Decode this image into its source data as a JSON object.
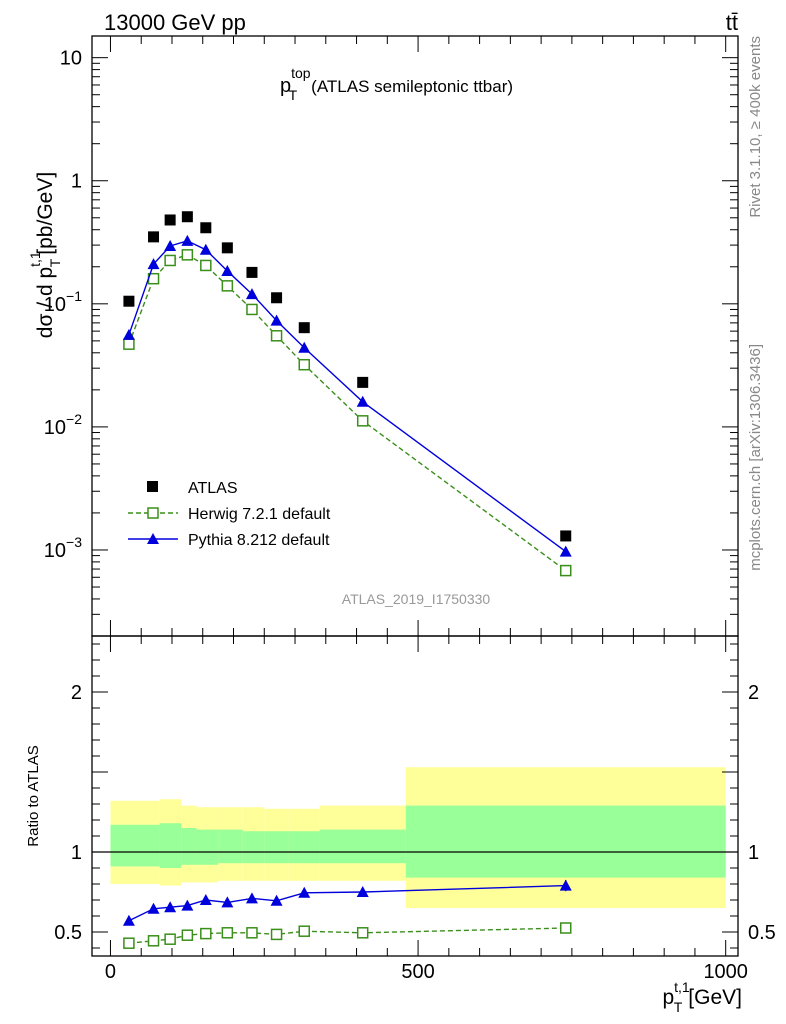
{
  "header": {
    "energy_label": "13000 GeV pp",
    "process_label": "tt̄"
  },
  "side_text": {
    "rivet": "Rivet 3.1.10, ≥ 400k events",
    "mcplots": "mcplots.cern.ch [arXiv:1306.3436]"
  },
  "chart_data": [
    {
      "type": "scatter",
      "panel": "main",
      "title_main": "p",
      "title_sup": "top",
      "title_sub": "T",
      "title_rest": "(ATLAS semileptonic ttbar)",
      "analysis_id": "ATLAS_2019_I1750330",
      "ylabel_pre": "dσ / d p",
      "ylabel_sup": "t,1",
      "ylabel_sub": "T",
      "ylabel_post": "[pb/GeV]",
      "yscale": "log",
      "ylim": [
        0.0002,
        15
      ],
      "xlim": [
        -30,
        1020
      ],
      "y_ticks": [
        {
          "value": 10,
          "mantissa": "10",
          "exp": ""
        },
        {
          "value": 1,
          "mantissa": "1",
          "exp": ""
        },
        {
          "value": 0.1,
          "mantissa": "10",
          "exp": "−1"
        },
        {
          "value": 0.01,
          "mantissa": "10",
          "exp": "−2"
        },
        {
          "value": 0.001,
          "mantissa": "10",
          "exp": "−3"
        }
      ],
      "legend": {
        "position": "lower-left",
        "entries": [
          "ATLAS",
          "Herwig 7.2.1 default",
          "Pythia 8.212 default"
        ]
      },
      "series": [
        {
          "name": "ATLAS",
          "marker": "square",
          "color": "#000000",
          "x": [
            30,
            70,
            97,
            125,
            155,
            190,
            230,
            270,
            315,
            410,
            740
          ],
          "y": [
            0.105,
            0.35,
            0.48,
            0.51,
            0.415,
            0.285,
            0.18,
            0.112,
            0.064,
            0.023,
            0.0013
          ]
        },
        {
          "name": "Herwig 7.2.1 default",
          "marker": "open-square",
          "line": "dashed",
          "color": "#3a8f1a",
          "x": [
            30,
            70,
            97,
            125,
            155,
            190,
            230,
            270,
            315,
            410,
            740
          ],
          "y": [
            0.047,
            0.16,
            0.225,
            0.25,
            0.205,
            0.14,
            0.09,
            0.055,
            0.032,
            0.0112,
            0.00068
          ]
        },
        {
          "name": "Pythia 8.212 default",
          "marker": "triangle",
          "line": "solid",
          "color": "#0000dd",
          "x": [
            30,
            70,
            97,
            125,
            155,
            190,
            230,
            270,
            315,
            410,
            740
          ],
          "y": [
            0.056,
            0.21,
            0.295,
            0.325,
            0.275,
            0.185,
            0.12,
            0.073,
            0.044,
            0.016,
            0.00097
          ]
        }
      ]
    },
    {
      "type": "scatter",
      "panel": "ratio",
      "ylabel": "Ratio to ATLAS",
      "xlabel_pre": "p",
      "xlabel_sup": "t,1",
      "xlabel_sub": "T",
      "xlabel_post": "[GeV]",
      "ylim": [
        0.35,
        2.35
      ],
      "xlim": [
        -30,
        1020
      ],
      "x_ticks": [
        0,
        500,
        1000
      ],
      "y_ticks": [
        0.5,
        1,
        2
      ],
      "reference_line": 1,
      "bands": {
        "bin_edges": [
          0,
          80,
          115,
          140,
          175,
          215,
          250,
          290,
          340,
          480,
          1000
        ],
        "total_low": [
          0.8,
          0.79,
          0.81,
          0.81,
          0.82,
          0.82,
          0.82,
          0.82,
          0.82,
          0.65
        ],
        "total_high": [
          1.32,
          1.33,
          1.29,
          1.28,
          1.28,
          1.28,
          1.27,
          1.27,
          1.29,
          1.53
        ],
        "stat_low": [
          0.91,
          0.9,
          0.92,
          0.92,
          0.93,
          0.93,
          0.93,
          0.93,
          0.93,
          0.84
        ],
        "stat_high": [
          1.17,
          1.18,
          1.15,
          1.14,
          1.14,
          1.13,
          1.13,
          1.13,
          1.14,
          1.29
        ],
        "total_color": "#ffff99",
        "stat_color": "#99ff99"
      },
      "series": [
        {
          "name": "Herwig 7.2.1 default",
          "marker": "open-square",
          "line": "dashed",
          "color": "#3a8f1a",
          "x": [
            30,
            70,
            97,
            125,
            155,
            190,
            230,
            270,
            315,
            410,
            740
          ],
          "y": [
            0.43,
            0.445,
            0.455,
            0.48,
            0.49,
            0.495,
            0.495,
            0.485,
            0.505,
            0.495,
            0.525
          ]
        },
        {
          "name": "Pythia 8.212 default",
          "marker": "triangle",
          "line": "solid",
          "color": "#0000dd",
          "x": [
            30,
            70,
            97,
            125,
            155,
            190,
            230,
            270,
            315,
            410,
            740
          ],
          "y": [
            0.57,
            0.645,
            0.655,
            0.665,
            0.7,
            0.685,
            0.71,
            0.695,
            0.745,
            0.75,
            0.79
          ],
          "yerr": [
            0.01,
            0.01,
            0.01,
            0.01,
            0.01,
            0.01,
            0.01,
            0.01,
            0.01,
            0.015,
            0.035
          ]
        }
      ]
    }
  ]
}
